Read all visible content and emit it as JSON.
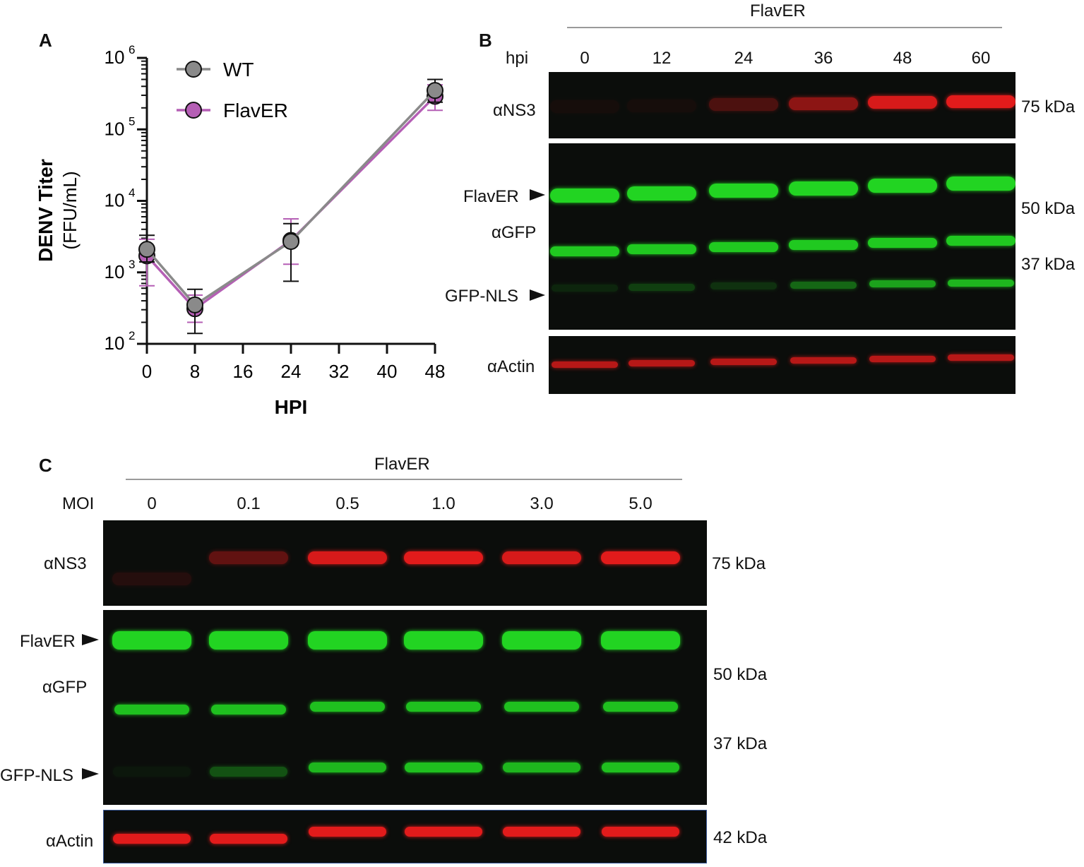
{
  "panel_a": {
    "label": "A",
    "chart_data": {
      "type": "line",
      "title": "",
      "xlabel": "HPI",
      "ylabel_bold": "DENV Titer",
      "ylabel_unit": "(FFU/mL)",
      "y_scale": "log",
      "xlim": [
        0,
        48
      ],
      "ylim": [
        100,
        1000000
      ],
      "x_ticks": [
        "0",
        "8",
        "16",
        "24",
        "32",
        "40",
        "48"
      ],
      "y_tick_base": "10",
      "y_tick_exponents": [
        "2",
        "3",
        "4",
        "5",
        "6"
      ],
      "legend_position": "top-left",
      "series": [
        {
          "name": "WT",
          "color": "#8a8a8a",
          "x": [
            0,
            8,
            24,
            48
          ],
          "y": [
            2100,
            350,
            2700,
            350000
          ],
          "err_low": [
            1400,
            140,
            750,
            240000
          ],
          "err_high": [
            3300,
            580,
            4800,
            500000
          ]
        },
        {
          "name": "FlavER",
          "color": "#b55fb5",
          "x": [
            0,
            8,
            24,
            48
          ],
          "y": [
            1700,
            310,
            2800,
            290000
          ],
          "err_low": [
            650,
            200,
            1300,
            185000
          ],
          "err_high": [
            2900,
            480,
            5600,
            420000
          ]
        }
      ]
    }
  },
  "panel_b": {
    "label": "B",
    "group_label": "FlavER",
    "axis_label": "hpi",
    "lanes": [
      "0",
      "12",
      "24",
      "36",
      "48",
      "60"
    ],
    "rows": {
      "ns3": "αNS3",
      "flaver": "FlavER",
      "gfp": "αGFP",
      "gfp_nls": "GFP-NLS",
      "actin": "αActin"
    },
    "markers": {
      "kda75": "75 kDa",
      "kda50": "50 kDa",
      "kda37": "37 kDa"
    },
    "ns3_intensity": [
      0.05,
      0.05,
      0.3,
      0.6,
      0.95,
      1.0
    ],
    "gfp_nls_intensity": [
      0.12,
      0.25,
      0.18,
      0.45,
      0.75,
      0.85
    ]
  },
  "panel_c": {
    "label": "C",
    "group_label": "FlavER",
    "axis_label": "MOI",
    "lanes": [
      "0",
      "0.1",
      "0.5",
      "1.0",
      "3.0",
      "5.0"
    ],
    "rows": {
      "ns3": "αNS3",
      "flaver": "FlavER",
      "gfp": "αGFP",
      "gfp_nls": "GFP-NLS",
      "actin": "αActin"
    },
    "markers": {
      "kda75": "75 kDa",
      "kda50": "50 kDa",
      "kda37": "37 kDa",
      "kda42": "42 kDa"
    },
    "ns3_intensity": [
      0.12,
      0.4,
      0.95,
      1.0,
      0.95,
      1.0
    ],
    "gfp_nls_intensity": [
      0.05,
      0.35,
      0.85,
      0.9,
      0.85,
      0.9
    ]
  },
  "colors": {
    "red_band": "#e21b1b",
    "green_band": "#22d422",
    "blot_bg": "#0b0d0b"
  }
}
